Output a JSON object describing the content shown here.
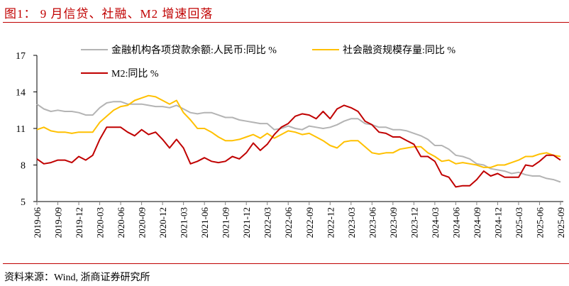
{
  "title": "图1：  9 月信贷、社融、M2 增速回落",
  "source": "资料来源：Wind, 浙商证券研究所",
  "chart_data": {
    "type": "line",
    "ylim": [
      5,
      17
    ],
    "yticks": [
      5,
      8,
      11,
      14,
      17
    ],
    "xtick_labels": [
      "2019-06",
      "2019-09",
      "2019-12",
      "2020-03",
      "2020-06",
      "2020-09",
      "2020-12",
      "2021-03",
      "2021-06",
      "2021-09",
      "2021-12",
      "2022-03",
      "2022-06",
      "2022-09",
      "2022-12",
      "2023-03",
      "2023-06",
      "2023-09",
      "2023-12",
      "2024-03",
      "2024-06",
      "2024-09",
      "2024-12",
      "2025-03",
      "2025-06",
      "2025-09"
    ],
    "x_start": "2019-06",
    "x_end": "2025-09",
    "grid": false,
    "legend_placement": "top",
    "series": [
      {
        "name": "金融机构各项贷款余额:人民币:同比 %",
        "color": "#b4b4b4",
        "values": [
          13.0,
          12.6,
          12.4,
          12.5,
          12.4,
          12.4,
          12.3,
          12.1,
          12.1,
          12.7,
          13.1,
          13.2,
          13.2,
          13.0,
          13.0,
          13.0,
          12.9,
          12.8,
          12.8,
          12.7,
          12.9,
          12.6,
          12.3,
          12.2,
          12.3,
          12.3,
          12.1,
          11.9,
          11.9,
          11.7,
          11.6,
          11.5,
          11.4,
          11.4,
          10.9,
          11.0,
          11.2,
          11.0,
          10.9,
          11.2,
          11.1,
          11.0,
          11.1,
          11.3,
          11.6,
          11.8,
          11.8,
          11.4,
          11.3,
          11.1,
          11.1,
          10.9,
          10.9,
          10.8,
          10.6,
          10.4,
          10.1,
          9.6,
          9.6,
          9.3,
          8.8,
          8.7,
          8.5,
          8.1,
          8.0,
          7.7,
          7.6,
          7.5,
          7.3,
          7.4,
          7.2,
          7.1,
          7.1,
          6.9,
          6.8,
          6.6
        ]
      },
      {
        "name": "社会融资规模存量:同比 %",
        "color": "#ffc000",
        "values": [
          10.9,
          11.1,
          10.8,
          10.7,
          10.7,
          10.6,
          10.7,
          10.7,
          10.7,
          11.5,
          12.0,
          12.5,
          12.8,
          12.9,
          13.3,
          13.5,
          13.7,
          13.6,
          13.3,
          13.0,
          13.3,
          12.3,
          11.7,
          11.0,
          11.0,
          10.7,
          10.3,
          10.0,
          10.0,
          10.1,
          10.3,
          10.5,
          10.2,
          10.6,
          10.2,
          10.5,
          10.8,
          10.7,
          10.5,
          10.6,
          10.3,
          10.0,
          9.6,
          9.4,
          9.9,
          10.0,
          10.0,
          9.5,
          9.0,
          8.9,
          9.0,
          9.0,
          9.3,
          9.4,
          9.5,
          9.5,
          9.0,
          8.7,
          8.3,
          8.4,
          8.1,
          8.2,
          8.1,
          8.0,
          7.8,
          7.8,
          8.0,
          8.0,
          8.2,
          8.4,
          8.7,
          8.7,
          8.9,
          9.0,
          8.8,
          8.7
        ]
      },
      {
        "name": "M2:同比 %",
        "color": "#c00000",
        "values": [
          8.5,
          8.1,
          8.2,
          8.4,
          8.4,
          8.2,
          8.7,
          8.4,
          8.8,
          10.1,
          11.1,
          11.1,
          11.1,
          10.7,
          10.4,
          10.9,
          10.5,
          10.7,
          10.1,
          9.4,
          10.1,
          9.4,
          8.1,
          8.3,
          8.6,
          8.3,
          8.2,
          8.3,
          8.7,
          8.5,
          9.0,
          9.8,
          9.2,
          9.7,
          10.5,
          11.1,
          11.4,
          12.0,
          12.2,
          12.1,
          11.8,
          12.4,
          11.8,
          12.6,
          12.9,
          12.7,
          12.4,
          11.6,
          11.3,
          10.7,
          10.6,
          10.3,
          10.3,
          10.0,
          9.7,
          8.7,
          8.7,
          8.3,
          7.2,
          7.0,
          6.2,
          6.3,
          6.3,
          6.8,
          7.5,
          7.1,
          7.3,
          7.0,
          7.0,
          7.0,
          8.0,
          7.9,
          8.3,
          8.8,
          8.8,
          8.4
        ]
      }
    ]
  }
}
